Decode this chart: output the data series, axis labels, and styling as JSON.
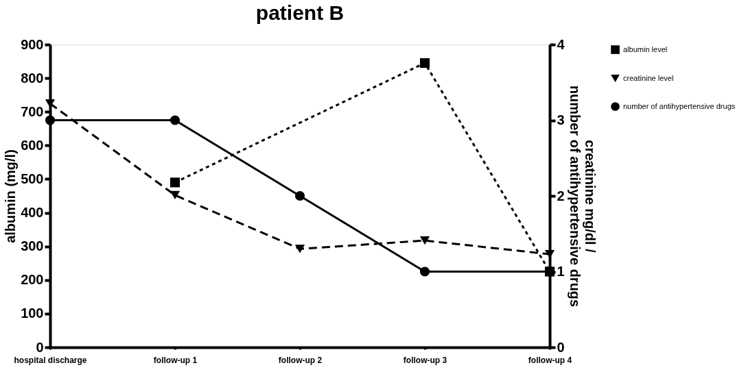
{
  "chart_data": {
    "type": "line",
    "title": "patient B",
    "categories": [
      "hospital discharge",
      "follow-up 1",
      "follow-up 2",
      "follow-up 3",
      "follow-up 4"
    ],
    "ylabel": "albumin (mg/l)",
    "y2label": "creatinine mg/dl /\nnumber of antihypertensive drugs",
    "ylim": [
      0,
      900
    ],
    "yticks": [
      0,
      100,
      200,
      300,
      400,
      500,
      600,
      700,
      800,
      900
    ],
    "y2lim": [
      0,
      4
    ],
    "y2ticks": [
      0,
      1,
      2,
      3,
      4
    ],
    "grid": false,
    "legend": "right",
    "series": [
      {
        "name": "albumin level",
        "color": "#000000",
        "marker": "square",
        "line_style": "dotted",
        "values": [
          null,
          490,
          null,
          845,
          225
        ]
      },
      {
        "name": "creatinine level",
        "color": "#000000",
        "marker": "triangle",
        "line_style": "dashed",
        "axis": "y2",
        "values": [
          3.22,
          2.01,
          1.3,
          1.41,
          1.23
        ]
      },
      {
        "name": "number of antihypertensive drugs",
        "color": "#000000",
        "marker": "circle",
        "line_style": "solid",
        "axis": "y2",
        "values": [
          3,
          3,
          2,
          1,
          1
        ]
      }
    ]
  }
}
